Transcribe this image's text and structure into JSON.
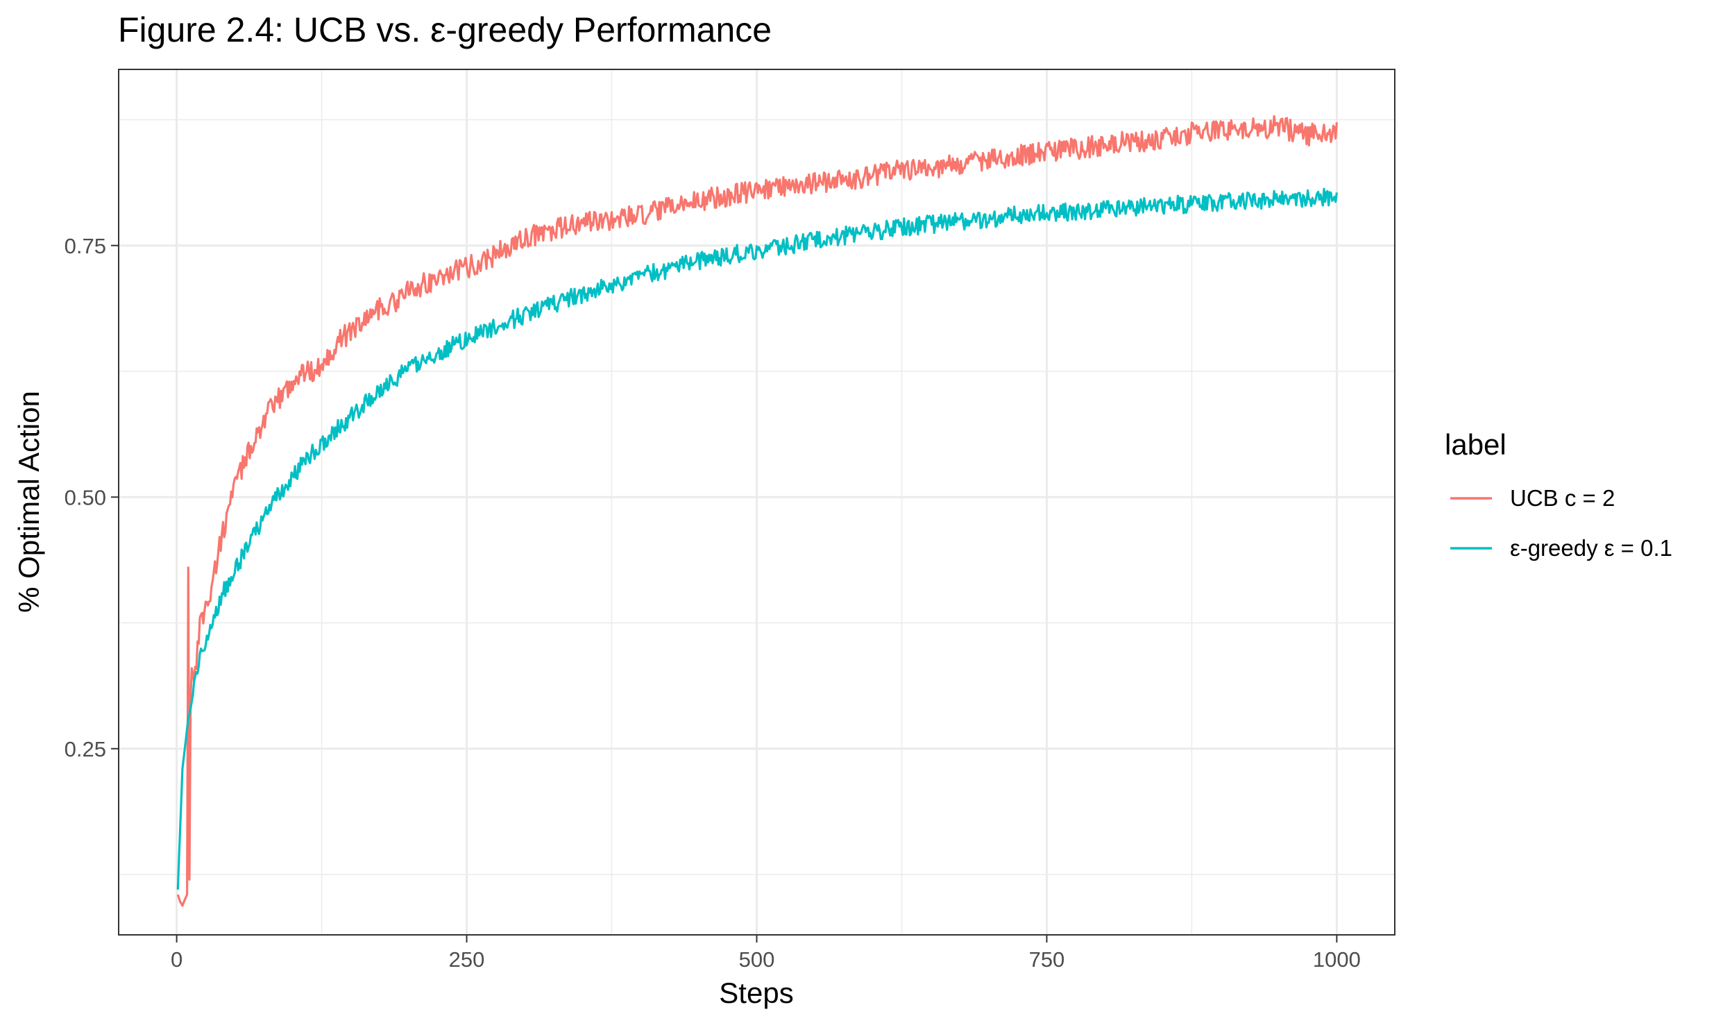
{
  "chart_data": {
    "type": "line",
    "title": "Figure 2.4: UCB vs. ε-greedy Performance",
    "xlabel": "Steps",
    "ylabel": "% Optimal Action",
    "xlim": [
      -50,
      1050
    ],
    "ylim": [
      0.065,
      0.925
    ],
    "x_ticks": [
      0,
      250,
      500,
      750,
      1000
    ],
    "x_tick_labels": [
      "0",
      "250",
      "500",
      "750",
      "1000"
    ],
    "y_ticks": [
      0.25,
      0.5,
      0.75
    ],
    "y_tick_labels": [
      "0.25",
      "0.50",
      "0.75"
    ],
    "grid": true,
    "legend": {
      "title": "label",
      "position": "right"
    },
    "series": [
      {
        "name": "UCB c = 2",
        "color": "#F8766D",
        "x": [
          1,
          3,
          5,
          7,
          9,
          10,
          11,
          12,
          13,
          15,
          18,
          20,
          23,
          26,
          30,
          35,
          40,
          45,
          50,
          60,
          70,
          80,
          90,
          100,
          110,
          120,
          130,
          140,
          150,
          160,
          170,
          180,
          190,
          200,
          210,
          220,
          230,
          240,
          250,
          260,
          270,
          280,
          290,
          300,
          325,
          350,
          375,
          400,
          425,
          450,
          475,
          500,
          525,
          550,
          575,
          600,
          625,
          650,
          675,
          700,
          725,
          750,
          775,
          800,
          825,
          850,
          875,
          900,
          925,
          950,
          975,
          1000
        ],
        "values": [
          0.105,
          0.098,
          0.094,
          0.1,
          0.105,
          0.43,
          0.12,
          0.3,
          0.33,
          0.32,
          0.35,
          0.375,
          0.385,
          0.39,
          0.41,
          0.44,
          0.465,
          0.49,
          0.51,
          0.54,
          0.565,
          0.585,
          0.6,
          0.615,
          0.625,
          0.625,
          0.64,
          0.655,
          0.665,
          0.675,
          0.685,
          0.69,
          0.695,
          0.705,
          0.71,
          0.715,
          0.72,
          0.725,
          0.728,
          0.733,
          0.738,
          0.745,
          0.75,
          0.757,
          0.765,
          0.772,
          0.776,
          0.779,
          0.787,
          0.795,
          0.8,
          0.804,
          0.81,
          0.812,
          0.815,
          0.82,
          0.825,
          0.828,
          0.83,
          0.836,
          0.84,
          0.843,
          0.846,
          0.85,
          0.853,
          0.856,
          0.862,
          0.866,
          0.865,
          0.868,
          0.86,
          0.862
        ]
      },
      {
        "name": "ε-greedy ε = 0.1",
        "color": "#00BFC4",
        "x": [
          1,
          3,
          5,
          8,
          10,
          12,
          15,
          18,
          20,
          25,
          30,
          35,
          40,
          45,
          50,
          60,
          70,
          80,
          90,
          100,
          110,
          120,
          130,
          140,
          150,
          160,
          170,
          180,
          190,
          200,
          220,
          240,
          260,
          280,
          300,
          325,
          350,
          375,
          400,
          425,
          450,
          475,
          500,
          525,
          550,
          575,
          600,
          625,
          650,
          675,
          700,
          725,
          750,
          775,
          800,
          825,
          850,
          875,
          900,
          925,
          950,
          975,
          1000
        ],
        "values": [
          0.11,
          0.17,
          0.23,
          0.26,
          0.28,
          0.29,
          0.31,
          0.325,
          0.34,
          0.36,
          0.375,
          0.39,
          0.405,
          0.415,
          0.425,
          0.45,
          0.47,
          0.49,
          0.505,
          0.52,
          0.535,
          0.548,
          0.558,
          0.57,
          0.58,
          0.59,
          0.6,
          0.61,
          0.619,
          0.627,
          0.64,
          0.652,
          0.662,
          0.672,
          0.681,
          0.692,
          0.702,
          0.711,
          0.719,
          0.727,
          0.734,
          0.74,
          0.745,
          0.75,
          0.755,
          0.76,
          0.764,
          0.768,
          0.771,
          0.774,
          0.777,
          0.78,
          0.782,
          0.784,
          0.786,
          0.788,
          0.79,
          0.791,
          0.793,
          0.794,
          0.796,
          0.797,
          0.798
        ]
      }
    ]
  }
}
